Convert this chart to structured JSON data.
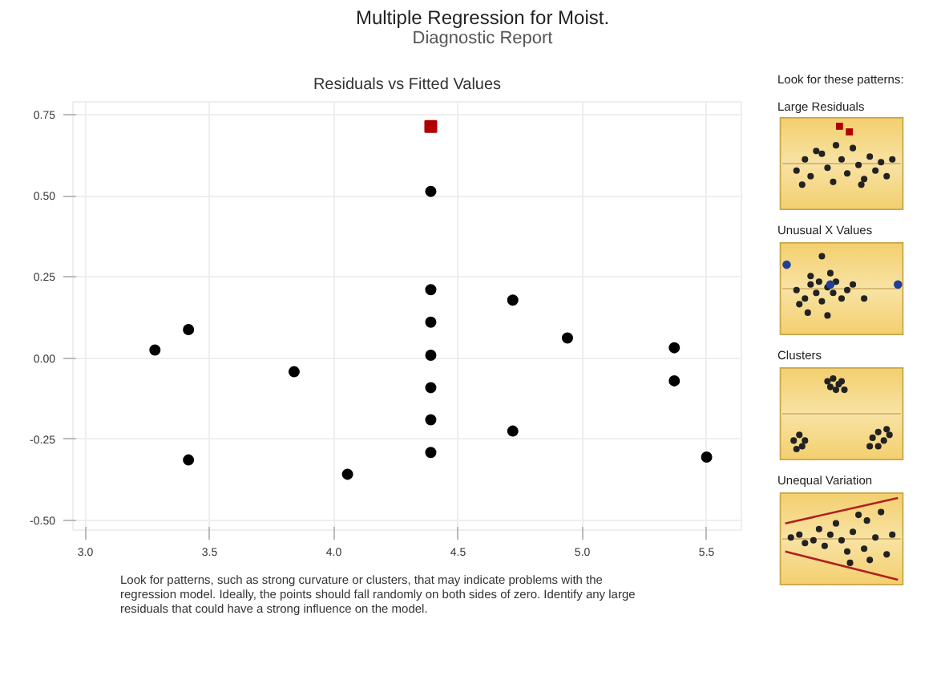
{
  "chart_data": {
    "type": "scatter",
    "title": "Multiple Regression for Moist.",
    "subtitle": "Diagnostic Report",
    "annotations": [
      "Residuals vs Fitted Values",
      "Look for patterns, such as strong curvature or clusters, that may indicate problems with the regression model. Ideally, the points should fall randomly on both sides of zero. Identify any large residuals that could have a strong influence on the model.",
      "Look for these patterns:",
      "Large Residuals",
      "Unusual X Values",
      "Clusters",
      "Unequal Variation"
    ],
    "series": [
      {
        "color": "#000000",
        "marker": "circle",
        "x": [
          3.28,
          3.415,
          3.415,
          3.84,
          4.055,
          4.39,
          4.39,
          4.39,
          4.39,
          4.39,
          4.39,
          4.39,
          4.72,
          4.72,
          4.94,
          5.37,
          5.37,
          5.5
        ],
        "values": [
          0.025,
          0.088,
          -0.314,
          -0.042,
          -0.358,
          0.514,
          0.211,
          0.111,
          0.009,
          -0.091,
          -0.19,
          -0.291,
          0.179,
          -0.225,
          0.062,
          0.032,
          -0.07,
          -0.305
        ]
      },
      {
        "color": "#b00000",
        "marker": "square",
        "x": [
          4.39
        ],
        "values": [
          0.714
        ]
      }
    ],
    "xlim": [
      2.95,
      5.64
    ],
    "ylim": [
      -0.53,
      0.79
    ],
    "xticks": [
      {
        "value": 3,
        "label": "3.0"
      },
      {
        "value": 3.5,
        "label": "3.5"
      },
      {
        "value": 4,
        "label": "4.0"
      },
      {
        "value": 4.5,
        "label": "4.5"
      },
      {
        "value": 5,
        "label": "5.0"
      },
      {
        "value": 5.5,
        "label": "5.5"
      }
    ],
    "yticks": [
      {
        "value": -0.5,
        "label": "-0.50"
      },
      {
        "value": -0.25,
        "label": "-0.25"
      },
      {
        "value": 0,
        "label": "0.00"
      },
      {
        "value": 0.25,
        "label": "0.25"
      },
      {
        "value": 0.5,
        "label": "0.50"
      },
      {
        "value": 0.75,
        "label": "0.75"
      }
    ],
    "grid": true
  }
}
